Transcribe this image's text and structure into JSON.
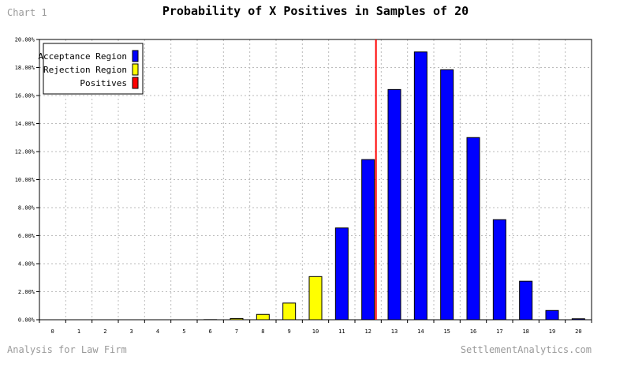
{
  "header": {
    "chart_label": "Chart 1",
    "title": "Probability of X Positives in Samples of 20"
  },
  "footer": {
    "left": "Analysis for Law Firm",
    "right": "SettlementAnalytics.com"
  },
  "colors": {
    "acceptance": "#0000ff",
    "rejection": "#ffff00",
    "positives": "#ff0000",
    "grid": "#bbbbbb"
  },
  "chart_data": {
    "type": "bar",
    "title": "Probability of X Positives in Samples of 20",
    "categories": [
      "0",
      "1",
      "2",
      "3",
      "4",
      "5",
      "6",
      "7",
      "8",
      "9",
      "10",
      "11",
      "12",
      "13",
      "14",
      "15",
      "16",
      "17",
      "18",
      "19",
      "20"
    ],
    "series": [
      {
        "name": "Acceptance Region",
        "color": "#0000ff",
        "values": [
          null,
          null,
          null,
          null,
          null,
          null,
          null,
          null,
          null,
          null,
          null,
          6.55,
          11.43,
          16.43,
          19.11,
          17.84,
          13.0,
          7.14,
          2.75,
          0.66,
          0.07
        ]
      },
      {
        "name": "Rejection Region",
        "color": "#ffff00",
        "values": [
          0,
          0,
          0,
          0,
          0,
          0,
          0.01,
          0.09,
          0.38,
          1.19,
          3.08,
          null,
          null,
          null,
          null,
          null,
          null,
          null,
          null,
          null,
          null
        ]
      }
    ],
    "reference_lines": [
      {
        "name": "Positives",
        "color": "#ff0000",
        "x": 12.3
      }
    ],
    "y_ticks": [
      "0.00%",
      "2.00%",
      "4.00%",
      "6.00%",
      "8.00%",
      "10.00%",
      "12.00%",
      "14.00%",
      "16.00%",
      "18.00%",
      "20.00%"
    ],
    "ylim": [
      0,
      20
    ],
    "grid": true,
    "legend_position": "top-left"
  }
}
